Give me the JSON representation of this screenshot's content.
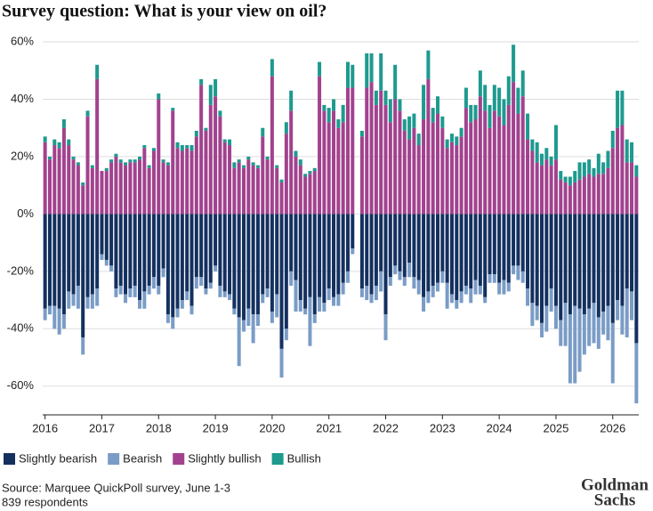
{
  "chart_data": {
    "type": "bar",
    "stacked": true,
    "title": "Survey question: What is your view on oil?",
    "source": "Source: Marquee QuickPoll survey, June 1-3",
    "note": "839 respondents",
    "logo": [
      "Goldman",
      "Sachs"
    ],
    "categories": [
      "2016",
      null,
      null,
      null,
      null,
      null,
      null,
      null,
      null,
      null,
      null,
      null,
      "2017",
      null,
      null,
      null,
      null,
      null,
      null,
      null,
      null,
      null,
      null,
      null,
      "2018",
      null,
      null,
      null,
      null,
      null,
      null,
      null,
      null,
      null,
      null,
      null,
      "2019",
      null,
      null,
      null,
      null,
      null,
      null,
      null,
      null,
      null,
      null,
      null,
      "2020",
      null,
      null,
      null,
      null,
      null,
      null,
      null,
      null,
      null,
      null,
      null,
      "2021",
      null,
      null,
      null,
      null,
      null,
      null,
      null,
      null,
      null,
      null,
      null,
      "2022",
      null,
      null,
      null,
      null,
      null,
      null,
      null,
      null,
      null,
      null,
      null,
      "2023",
      null,
      null,
      null,
      null,
      null,
      null,
      null,
      null,
      null,
      null,
      null,
      "2024",
      null,
      null,
      null,
      null,
      null,
      null,
      null,
      null,
      null,
      null,
      null,
      "2025",
      null,
      null,
      null,
      null,
      null,
      null,
      null,
      null,
      null,
      null,
      null,
      "2026",
      null,
      null,
      null,
      null,
      null
    ],
    "series": [
      {
        "name": "Slightly bearish",
        "color": "#13305f",
        "values": [
          -33,
          -32,
          -32,
          -33,
          -35,
          -27,
          -28,
          -25,
          -43,
          -29,
          -28,
          -26,
          -14,
          -16,
          -18,
          -26,
          -25,
          -28,
          -26,
          -25,
          -30,
          -27,
          -25,
          -22,
          -25,
          -19,
          -35,
          -36,
          -33,
          -30,
          -27,
          -32,
          -22,
          -22,
          -26,
          -24,
          -18,
          -25,
          -27,
          -28,
          -33,
          -36,
          -37,
          -33,
          -35,
          -35,
          -28,
          -26,
          -34,
          -28,
          -47,
          -40,
          -20,
          -23,
          -30,
          -33,
          -29,
          -35,
          -29,
          -31,
          -26,
          -29,
          -28,
          -24,
          -20,
          -12,
          null,
          -26,
          -25,
          -28,
          -25,
          -20,
          -35,
          -22,
          -18,
          -20,
          -22,
          -17,
          -22,
          -23,
          -29,
          -27,
          -25,
          -24,
          -20,
          -24,
          -28,
          -30,
          -27,
          -25,
          -26,
          -23,
          -25,
          -29,
          -21,
          -21,
          -24,
          -23,
          -24,
          -18,
          -18,
          -20,
          -26,
          -31,
          -32,
          -38,
          -32,
          -26,
          -32,
          -37,
          -31,
          -35,
          -32,
          -33,
          -35,
          -33,
          -31,
          -36,
          -34,
          -32,
          -38,
          -30,
          -32,
          -26,
          -27,
          -45
        ]
      },
      {
        "name": "Bearish",
        "color": "#7a9cc6",
        "values": [
          -4,
          -3,
          -8,
          -9,
          -5,
          -6,
          -4,
          -8,
          -6,
          -4,
          -5,
          -6,
          -2,
          -2,
          -2,
          -3,
          -3,
          -3,
          -3,
          -4,
          -3,
          -6,
          -3,
          -4,
          -3,
          -3,
          -3,
          -4,
          -3,
          -3,
          -3,
          -3,
          -4,
          -3,
          -2,
          -2,
          -2,
          -4,
          -2,
          -2,
          -2,
          -17,
          -4,
          -6,
          -10,
          -4,
          -3,
          -3,
          -4,
          -8,
          -10,
          -4,
          -5,
          -11,
          -4,
          -2,
          -17,
          -3,
          -5,
          -3,
          -4,
          -3,
          -4,
          -4,
          -4,
          -2,
          null,
          -3,
          -5,
          -3,
          -5,
          -7,
          -9,
          -3,
          -3,
          -3,
          -3,
          -5,
          -4,
          -5,
          -5,
          -4,
          -4,
          -3,
          -4,
          -9,
          -3,
          -3,
          -4,
          -3,
          -5,
          -5,
          -3,
          -2,
          -3,
          -3,
          -4,
          -5,
          -3,
          -3,
          -5,
          -4,
          -6,
          -8,
          -5,
          -5,
          -9,
          -8,
          -8,
          -9,
          -15,
          -24,
          -27,
          -22,
          -14,
          -13,
          -14,
          -11,
          -8,
          -12,
          -21,
          -7,
          -10,
          -17,
          -10,
          -21
        ]
      },
      {
        "name": "Slightly bullish",
        "color": "#a2428e",
        "values": [
          25,
          19,
          24,
          23,
          30,
          24,
          19,
          17,
          10,
          34,
          16,
          47,
          15,
          15,
          18,
          20,
          18,
          17,
          18,
          18,
          19,
          23,
          16,
          22,
          40,
          18,
          17,
          36,
          23,
          22,
          23,
          22,
          27,
          45,
          29,
          38,
          41,
          34,
          25,
          24,
          16,
          18,
          16,
          19,
          17,
          16,
          27,
          19,
          48,
          16,
          11,
          28,
          36,
          20,
          17,
          13,
          14,
          15,
          48,
          36,
          32,
          36,
          30,
          32,
          44,
          44,
          null,
          27,
          44,
          46,
          38,
          43,
          38,
          32,
          40,
          36,
          29,
          26,
          30,
          24,
          33,
          47,
          32,
          35,
          30,
          23,
          25,
          24,
          27,
          37,
          32,
          33,
          41,
          36,
          30,
          36,
          34,
          31,
          38,
          46,
          35,
          41,
          26,
          22,
          18,
          17,
          19,
          17,
          19,
          12,
          11,
          10,
          11,
          12,
          13,
          14,
          13,
          14,
          14,
          16,
          23,
          30,
          31,
          18,
          18,
          13
        ]
      },
      {
        "name": "Bullish",
        "color": "#1e9a8f",
        "values": [
          2,
          1,
          2,
          2,
          3,
          2,
          1,
          1,
          1,
          2,
          1,
          5,
          0,
          1,
          1,
          1,
          1,
          1,
          1,
          1,
          1,
          1,
          1,
          1,
          2,
          1,
          1,
          1,
          2,
          2,
          1,
          2,
          2,
          2,
          1,
          7,
          6,
          2,
          1,
          2,
          2,
          1,
          1,
          1,
          1,
          1,
          3,
          1,
          6,
          1,
          1,
          4,
          7,
          2,
          2,
          1,
          1,
          1,
          5,
          2,
          5,
          4,
          3,
          6,
          9,
          8,
          null,
          2,
          12,
          10,
          5,
          13,
          5,
          8,
          12,
          4,
          4,
          8,
          5,
          4,
          12,
          10,
          5,
          6,
          4,
          3,
          3,
          3,
          3,
          7,
          6,
          5,
          9,
          9,
          8,
          9,
          10,
          9,
          10,
          13,
          9,
          9,
          9,
          4,
          7,
          4,
          4,
          3,
          12,
          3,
          2,
          3,
          4,
          6,
          5,
          5,
          3,
          7,
          4,
          6,
          6,
          13,
          12,
          8,
          7,
          4
        ]
      }
    ],
    "ylim": [
      -70,
      60
    ],
    "yticks": [
      {
        "value": -60,
        "label": "-60%"
      },
      {
        "value": -40,
        "label": "-40%"
      },
      {
        "value": -20,
        "label": "-20%"
      },
      {
        "value": 0,
        "label": "0%"
      },
      {
        "value": 20,
        "label": "20%"
      },
      {
        "value": 40,
        "label": "40%"
      },
      {
        "value": 60,
        "label": "60%"
      }
    ],
    "grid": true,
    "legend": "bottom-left"
  }
}
